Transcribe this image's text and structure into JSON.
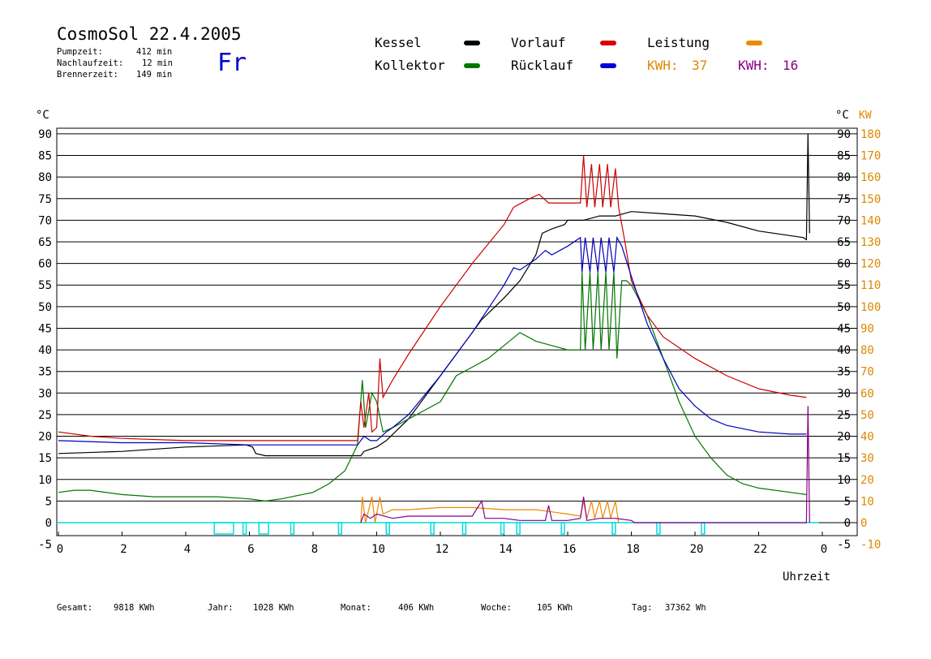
{
  "header": {
    "title": "CosmoSol 22.4.2005",
    "weekday": "Fr",
    "pumpzeit_label": "Pumpzeit:",
    "pumpzeit_value": "412 min",
    "nachlaufzeit_label": "Nachlaufzeit:",
    "nachlaufzeit_value": "12 min",
    "brennerzeit_label": "Brennerzeit:",
    "brennerzeit_value": "149 min"
  },
  "legend": {
    "kessel": "Kessel",
    "kollektor": "Kollektor",
    "vorlauf": "Vorlauf",
    "ruecklauf": "Rücklauf",
    "leistung": "Leistung",
    "kwh1_label": "KWH:",
    "kwh1_value": "37",
    "kwh2_label": "KWH:",
    "kwh2_value": "16"
  },
  "colors": {
    "kessel": "#000000",
    "kollektor": "#007700",
    "vorlauf": "#cc0000",
    "ruecklauf": "#0000bb",
    "leistung": "#ee8800",
    "kwh2": "#880088",
    "pump": "#00dddd"
  },
  "footer": {
    "gesamt_label": "Gesamt:",
    "gesamt_value": "9818 KWh",
    "jahr_label": "Jahr:",
    "jahr_value": "1028 KWh",
    "monat_label": "Monat:",
    "monat_value": "406 KWh",
    "woche_label": "Woche:",
    "woche_value": "105 KWh",
    "tag_label": "Tag:",
    "tag_value": "37362 Wh"
  },
  "chart_data": {
    "type": "line",
    "xlabel": "Uhrzeit",
    "ylabel_left": "°C",
    "ylabel_right_c": "°C",
    "ylabel_right_kw": "KW",
    "xlim": [
      0,
      24
    ],
    "ylim": [
      -5,
      92
    ],
    "x_ticks": [
      "0",
      "2",
      "4",
      "6",
      "8",
      "10",
      "12",
      "14",
      "16",
      "18",
      "20",
      "22",
      "0"
    ],
    "y_ticks": [
      -5,
      0,
      5,
      10,
      15,
      20,
      25,
      30,
      35,
      40,
      45,
      50,
      55,
      60,
      65,
      70,
      75,
      80,
      85,
      90
    ],
    "kw_ticks": [
      -10,
      0,
      10,
      20,
      30,
      40,
      50,
      60,
      70,
      80,
      90,
      100,
      110,
      120,
      130,
      140,
      150,
      160,
      170,
      180
    ],
    "grid": "horizontal",
    "series": [
      {
        "name": "Kessel",
        "color": "#000000",
        "points": [
          [
            0,
            16
          ],
          [
            2,
            16.5
          ],
          [
            4,
            17.5
          ],
          [
            5.9,
            18
          ],
          [
            6.1,
            17.5
          ],
          [
            6.2,
            16
          ],
          [
            6.5,
            15.5
          ],
          [
            8,
            15.5
          ],
          [
            9.5,
            15.5
          ],
          [
            9.6,
            16.5
          ],
          [
            9.8,
            17
          ],
          [
            10,
            17.5
          ],
          [
            10.3,
            19
          ],
          [
            11,
            24
          ],
          [
            12,
            34
          ],
          [
            13,
            44
          ],
          [
            13.3,
            47
          ],
          [
            14,
            52
          ],
          [
            14.5,
            56
          ],
          [
            15,
            62
          ],
          [
            15.2,
            67
          ],
          [
            15.5,
            68
          ],
          [
            15.9,
            69
          ],
          [
            16,
            70
          ],
          [
            16.5,
            70
          ],
          [
            17,
            71
          ],
          [
            17.5,
            71
          ],
          [
            18,
            72
          ],
          [
            19,
            71.5
          ],
          [
            20,
            71
          ],
          [
            21,
            69.5
          ],
          [
            22,
            67.5
          ],
          [
            23.4,
            66
          ],
          [
            23.5,
            65.5
          ],
          [
            23.55,
            90
          ],
          [
            23.6,
            67
          ]
        ]
      },
      {
        "name": "Kollektor",
        "color": "#007700",
        "points": [
          [
            0,
            7
          ],
          [
            0.5,
            7.5
          ],
          [
            1,
            7.5
          ],
          [
            2,
            6.5
          ],
          [
            3,
            6
          ],
          [
            4,
            6
          ],
          [
            5,
            6
          ],
          [
            6,
            5.5
          ],
          [
            6.5,
            5
          ],
          [
            7,
            5.5
          ],
          [
            8,
            7
          ],
          [
            8.5,
            9
          ],
          [
            9,
            12
          ],
          [
            9.4,
            18
          ],
          [
            9.55,
            33
          ],
          [
            9.65,
            22
          ],
          [
            9.85,
            30
          ],
          [
            10,
            28
          ],
          [
            10.2,
            21
          ],
          [
            10.5,
            22
          ],
          [
            11,
            24
          ],
          [
            11.5,
            26
          ],
          [
            12,
            28
          ],
          [
            12.5,
            34
          ],
          [
            13,
            36
          ],
          [
            13.5,
            38
          ],
          [
            14,
            41
          ],
          [
            14.5,
            44
          ],
          [
            15,
            42
          ],
          [
            15.5,
            41
          ],
          [
            16,
            40
          ],
          [
            16.4,
            40
          ],
          [
            16.45,
            58
          ],
          [
            16.55,
            40
          ],
          [
            16.7,
            58
          ],
          [
            16.8,
            40
          ],
          [
            16.95,
            58
          ],
          [
            17.05,
            40
          ],
          [
            17.2,
            58
          ],
          [
            17.3,
            40
          ],
          [
            17.45,
            58
          ],
          [
            17.55,
            38
          ],
          [
            17.7,
            56
          ],
          [
            17.85,
            56
          ],
          [
            18,
            55
          ],
          [
            18.5,
            48
          ],
          [
            19,
            38
          ],
          [
            19.5,
            28
          ],
          [
            20,
            20
          ],
          [
            20.5,
            15
          ],
          [
            21,
            11
          ],
          [
            21.5,
            9
          ],
          [
            22,
            8
          ],
          [
            23,
            7
          ],
          [
            23.5,
            6.5
          ]
        ]
      },
      {
        "name": "Vorlauf",
        "color": "#cc0000",
        "points": [
          [
            0,
            21
          ],
          [
            1,
            20
          ],
          [
            2,
            19.5
          ],
          [
            4,
            19
          ],
          [
            6,
            19
          ],
          [
            8,
            19
          ],
          [
            9.4,
            19
          ],
          [
            9.5,
            28
          ],
          [
            9.6,
            22
          ],
          [
            9.75,
            30
          ],
          [
            9.85,
            21
          ],
          [
            10,
            22
          ],
          [
            10.1,
            38
          ],
          [
            10.2,
            29
          ],
          [
            10.5,
            33
          ],
          [
            11,
            39
          ],
          [
            12,
            50
          ],
          [
            13,
            60
          ],
          [
            14,
            69
          ],
          [
            14.3,
            73
          ],
          [
            14.8,
            75
          ],
          [
            15.1,
            76
          ],
          [
            15.4,
            74
          ],
          [
            15.8,
            74
          ],
          [
            16,
            74
          ],
          [
            16.4,
            74
          ],
          [
            16.5,
            85
          ],
          [
            16.6,
            73
          ],
          [
            16.75,
            83
          ],
          [
            16.85,
            73
          ],
          [
            17,
            83
          ],
          [
            17.1,
            73
          ],
          [
            17.25,
            83
          ],
          [
            17.35,
            73
          ],
          [
            17.5,
            82
          ],
          [
            17.6,
            73
          ],
          [
            17.8,
            65
          ],
          [
            18,
            56
          ],
          [
            18.5,
            48
          ],
          [
            19,
            43
          ],
          [
            20,
            38
          ],
          [
            21,
            34
          ],
          [
            22,
            31
          ],
          [
            23,
            29.5
          ],
          [
            23.5,
            29
          ]
        ]
      },
      {
        "name": "Rücklauf",
        "color": "#0000bb",
        "points": [
          [
            0,
            19
          ],
          [
            2,
            18.5
          ],
          [
            4,
            18.5
          ],
          [
            6,
            18
          ],
          [
            8,
            18
          ],
          [
            9.4,
            18
          ],
          [
            9.6,
            20
          ],
          [
            9.8,
            19
          ],
          [
            10,
            19
          ],
          [
            10.3,
            21
          ],
          [
            10.5,
            22
          ],
          [
            11,
            25
          ],
          [
            12,
            34
          ],
          [
            13,
            44
          ],
          [
            14,
            55
          ],
          [
            14.3,
            59
          ],
          [
            14.5,
            58.5
          ],
          [
            15,
            61
          ],
          [
            15.3,
            63
          ],
          [
            15.5,
            62
          ],
          [
            16,
            64
          ],
          [
            16.4,
            66
          ],
          [
            16.45,
            58
          ],
          [
            16.55,
            66
          ],
          [
            16.7,
            58
          ],
          [
            16.8,
            66
          ],
          [
            16.95,
            58
          ],
          [
            17.05,
            66
          ],
          [
            17.2,
            58
          ],
          [
            17.3,
            66
          ],
          [
            17.45,
            58
          ],
          [
            17.55,
            66
          ],
          [
            17.7,
            64
          ],
          [
            18,
            57
          ],
          [
            18.5,
            46
          ],
          [
            19,
            38
          ],
          [
            19.5,
            31
          ],
          [
            20,
            27
          ],
          [
            20.5,
            24
          ],
          [
            21,
            22.5
          ],
          [
            22,
            21
          ],
          [
            23,
            20.5
          ],
          [
            23.5,
            20.5
          ]
        ]
      },
      {
        "name": "Leistung",
        "color": "#ee8800",
        "points": [
          [
            9.5,
            0
          ],
          [
            9.55,
            6
          ],
          [
            9.65,
            0
          ],
          [
            9.85,
            6
          ],
          [
            9.95,
            0
          ],
          [
            10.1,
            6
          ],
          [
            10.2,
            2
          ],
          [
            10.5,
            3
          ],
          [
            11,
            3
          ],
          [
            12,
            3.5
          ],
          [
            13,
            3.5
          ],
          [
            14,
            3
          ],
          [
            15,
            3
          ],
          [
            15.5,
            2.5
          ],
          [
            16,
            2
          ],
          [
            16.4,
            1.5
          ],
          [
            16.5,
            5
          ],
          [
            16.6,
            1
          ],
          [
            16.75,
            5
          ],
          [
            16.85,
            1
          ],
          [
            17,
            5
          ],
          [
            17.1,
            1
          ],
          [
            17.25,
            5
          ],
          [
            17.35,
            1
          ],
          [
            17.5,
            5
          ],
          [
            17.6,
            0
          ]
        ]
      },
      {
        "name": "KWH-16",
        "color": "#880088",
        "points": [
          [
            9.5,
            0
          ],
          [
            9.6,
            2
          ],
          [
            9.8,
            1
          ],
          [
            10,
            2
          ],
          [
            10.5,
            1
          ],
          [
            11,
            1.5
          ],
          [
            12,
            1.5
          ],
          [
            13,
            1.5
          ],
          [
            13.3,
            5
          ],
          [
            13.4,
            1
          ],
          [
            14,
            1
          ],
          [
            14.5,
            0.5
          ],
          [
            15,
            0.5
          ],
          [
            15.3,
            0.5
          ],
          [
            15.4,
            4
          ],
          [
            15.5,
            0.5
          ],
          [
            16,
            0.5
          ],
          [
            16.4,
            1
          ],
          [
            16.5,
            6
          ],
          [
            16.6,
            0.5
          ],
          [
            17,
            1
          ],
          [
            17.5,
            1
          ],
          [
            18,
            0.5
          ],
          [
            18.1,
            0
          ],
          [
            23.5,
            0
          ],
          [
            23.55,
            27
          ],
          [
            23.6,
            0
          ]
        ]
      }
    ],
    "pump_on_intervals": [
      [
        4.9,
        5.5
      ],
      [
        5.8,
        5.9
      ],
      [
        6.3,
        6.6
      ],
      [
        7.3,
        7.4
      ],
      [
        8.8,
        8.9
      ],
      [
        10.3,
        10.4
      ],
      [
        11.7,
        11.8
      ],
      [
        12.7,
        12.8
      ],
      [
        13.9,
        14.0
      ],
      [
        14.4,
        14.5
      ],
      [
        15.8,
        15.9
      ],
      [
        17.4,
        17.5
      ],
      [
        18.8,
        18.9
      ],
      [
        20.2,
        20.3
      ]
    ]
  }
}
